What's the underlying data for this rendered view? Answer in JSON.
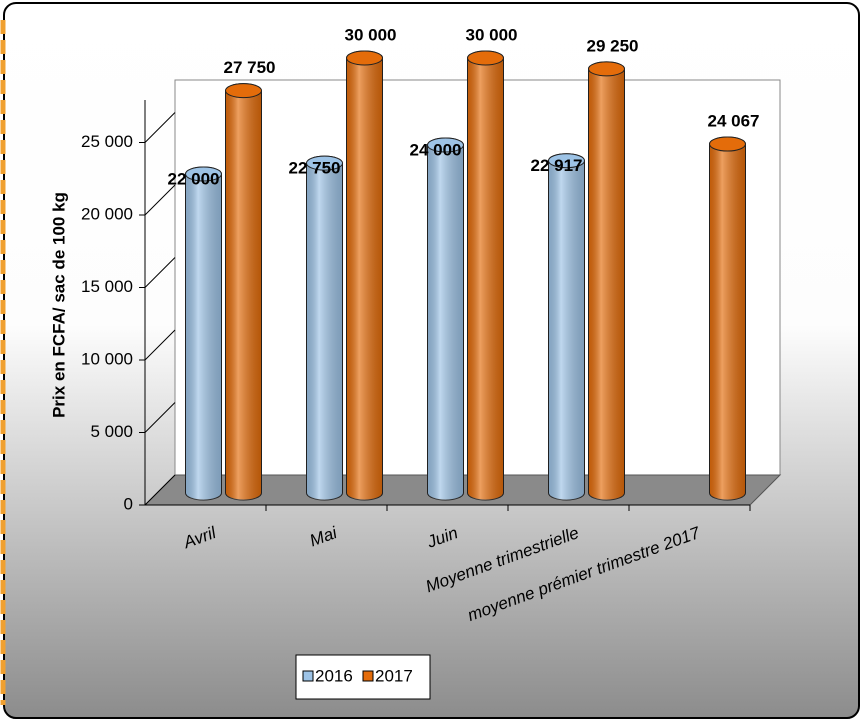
{
  "chart_data": {
    "type": "bar3d",
    "y_label": "Prix en FCFA/ sac de 100 kg",
    "categories": [
      "Avril",
      "Mai",
      "Juin",
      "Moyenne trimestrielle",
      "moyenne prémier trimestre 2017"
    ],
    "series": [
      {
        "name": "2016",
        "color": "#9dc3e6",
        "values": [
          22000,
          22750,
          24000,
          22917,
          null
        ],
        "value_labels": [
          "22 000",
          "22 750",
          "24 000",
          "22 917",
          null
        ]
      },
      {
        "name": "2017",
        "color": "#e46c0a",
        "values": [
          27750,
          30000,
          30000,
          29250,
          24067
        ],
        "value_labels": [
          "27 750",
          "30 000",
          "30 000",
          "29 250",
          "24 067"
        ]
      }
    ],
    "ylim": [
      0,
      30000
    ],
    "yticks": [
      0,
      {
        "value": 5000,
        "label": "5 000"
      },
      {
        "value": 10000,
        "label": "10 000"
      },
      {
        "value": 15000,
        "label": "15 000"
      },
      {
        "value": 20000,
        "label": "20 000"
      },
      {
        "value": 25000,
        "label": "25 000"
      }
    ],
    "legend": "bottom"
  }
}
